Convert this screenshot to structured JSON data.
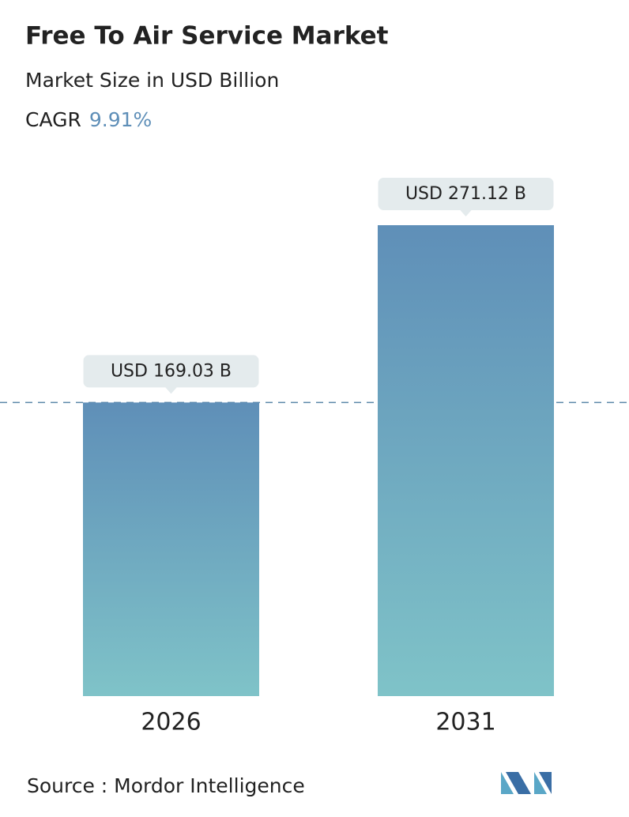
{
  "chart_data": {
    "type": "bar",
    "title": "Free To Air Service Market",
    "subtitle": "Market Size in USD Billion",
    "cagr_label": "CAGR",
    "cagr_value": "9.91%",
    "categories": [
      "2026",
      "2031"
    ],
    "values": [
      169.03,
      271.12
    ],
    "value_labels": [
      "USD 169.03 B",
      "USD 271.12 B"
    ],
    "color": "#5f8fb8",
    "color_bottom": "#7fc3c8",
    "source": "Source :  Mordor Intelligence"
  }
}
